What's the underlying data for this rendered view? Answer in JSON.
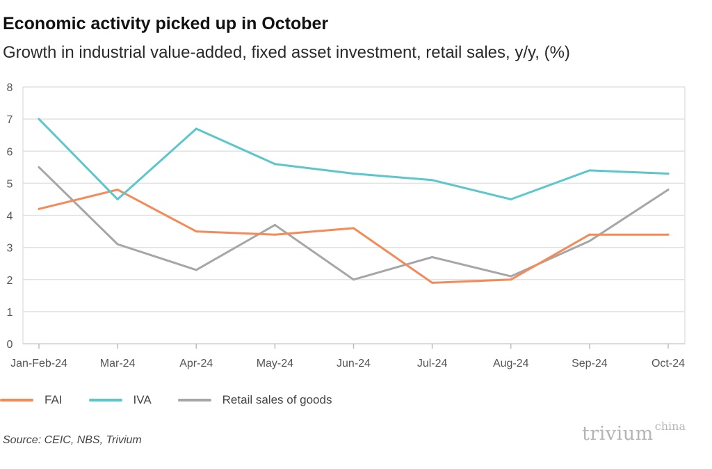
{
  "title": "Economic activity picked up in October",
  "subtitle": "Growth in industrial value-added, fixed asset investment, retail sales, y/y, (%)",
  "source": "Source: CEIC, NBS, Trivium",
  "logo": {
    "main": "trivium",
    "sup": "china"
  },
  "chart_data": {
    "type": "line",
    "title": "Economic activity picked up in October",
    "subtitle": "Growth in industrial value-added, fixed asset investment, retail sales, y/y, (%)",
    "categories": [
      "Jan-Feb-24",
      "Mar-24",
      "Apr-24",
      "May-24",
      "Jun-24",
      "Jul-24",
      "Aug-24",
      "Sep-24",
      "Oct-24"
    ],
    "ylim": [
      0,
      8
    ],
    "yticks": [
      "0",
      "1",
      "2",
      "3",
      "4",
      "5",
      "6",
      "7",
      "8"
    ],
    "grid": true,
    "legend_position": "bottom-left",
    "series": [
      {
        "name": "FAI",
        "color": "#f58a57",
        "values": [
          4.2,
          4.8,
          3.5,
          3.4,
          3.6,
          1.9,
          2.0,
          3.4,
          3.4
        ]
      },
      {
        "name": "IVA",
        "color": "#5bc7cb",
        "values": [
          7.0,
          4.5,
          6.7,
          5.6,
          5.3,
          5.1,
          4.5,
          5.4,
          5.3
        ]
      },
      {
        "name": "Retail sales of goods",
        "color": "#a6a6a6",
        "values": [
          5.5,
          3.1,
          2.3,
          3.7,
          2.0,
          2.7,
          2.1,
          3.2,
          4.8
        ]
      }
    ]
  }
}
